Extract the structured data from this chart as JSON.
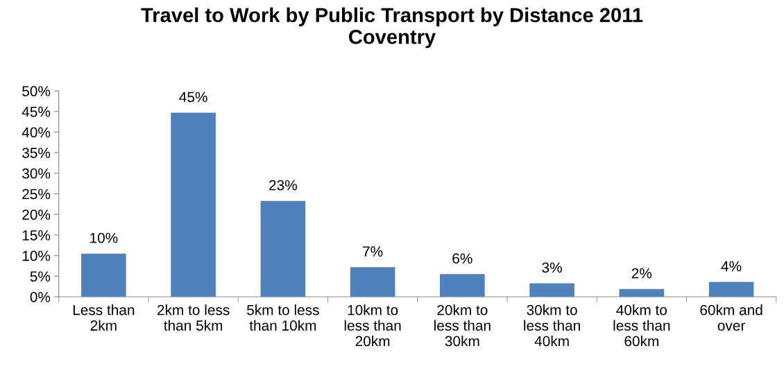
{
  "chart_data": {
    "type": "bar",
    "title": "Travel to Work by Public Transport by Distance 2011\nCoventry",
    "categories": [
      "Less than\n2km",
      "2km to less\nthan 5km",
      "5km to less\nthan 10km",
      "10km to\nless than\n20km",
      "20km to\nless than\n30km",
      "30km to\nless than\n40km",
      "40km to\nless than\n60km",
      "60km and\nover"
    ],
    "values": [
      10.5,
      44.7,
      23.3,
      7.2,
      5.5,
      3.3,
      1.9,
      3.6
    ],
    "value_labels": [
      "10%",
      "45%",
      "23%",
      "7%",
      "6%",
      "3%",
      "2%",
      "4%"
    ],
    "color": "#4f81bd",
    "ylim": [
      0,
      50
    ],
    "yticks": [
      {
        "value": 0,
        "label": "0%"
      },
      {
        "value": 5,
        "label": "5%"
      },
      {
        "value": 10,
        "label": "10%"
      },
      {
        "value": 15,
        "label": "15%"
      },
      {
        "value": 20,
        "label": "20%"
      },
      {
        "value": 25,
        "label": "25%"
      },
      {
        "value": 30,
        "label": "30%"
      },
      {
        "value": 35,
        "label": "35%"
      },
      {
        "value": 40,
        "label": "40%"
      },
      {
        "value": 45,
        "label": "45%"
      },
      {
        "value": 50,
        "label": "50%"
      }
    ],
    "grid": false,
    "legend": false
  }
}
